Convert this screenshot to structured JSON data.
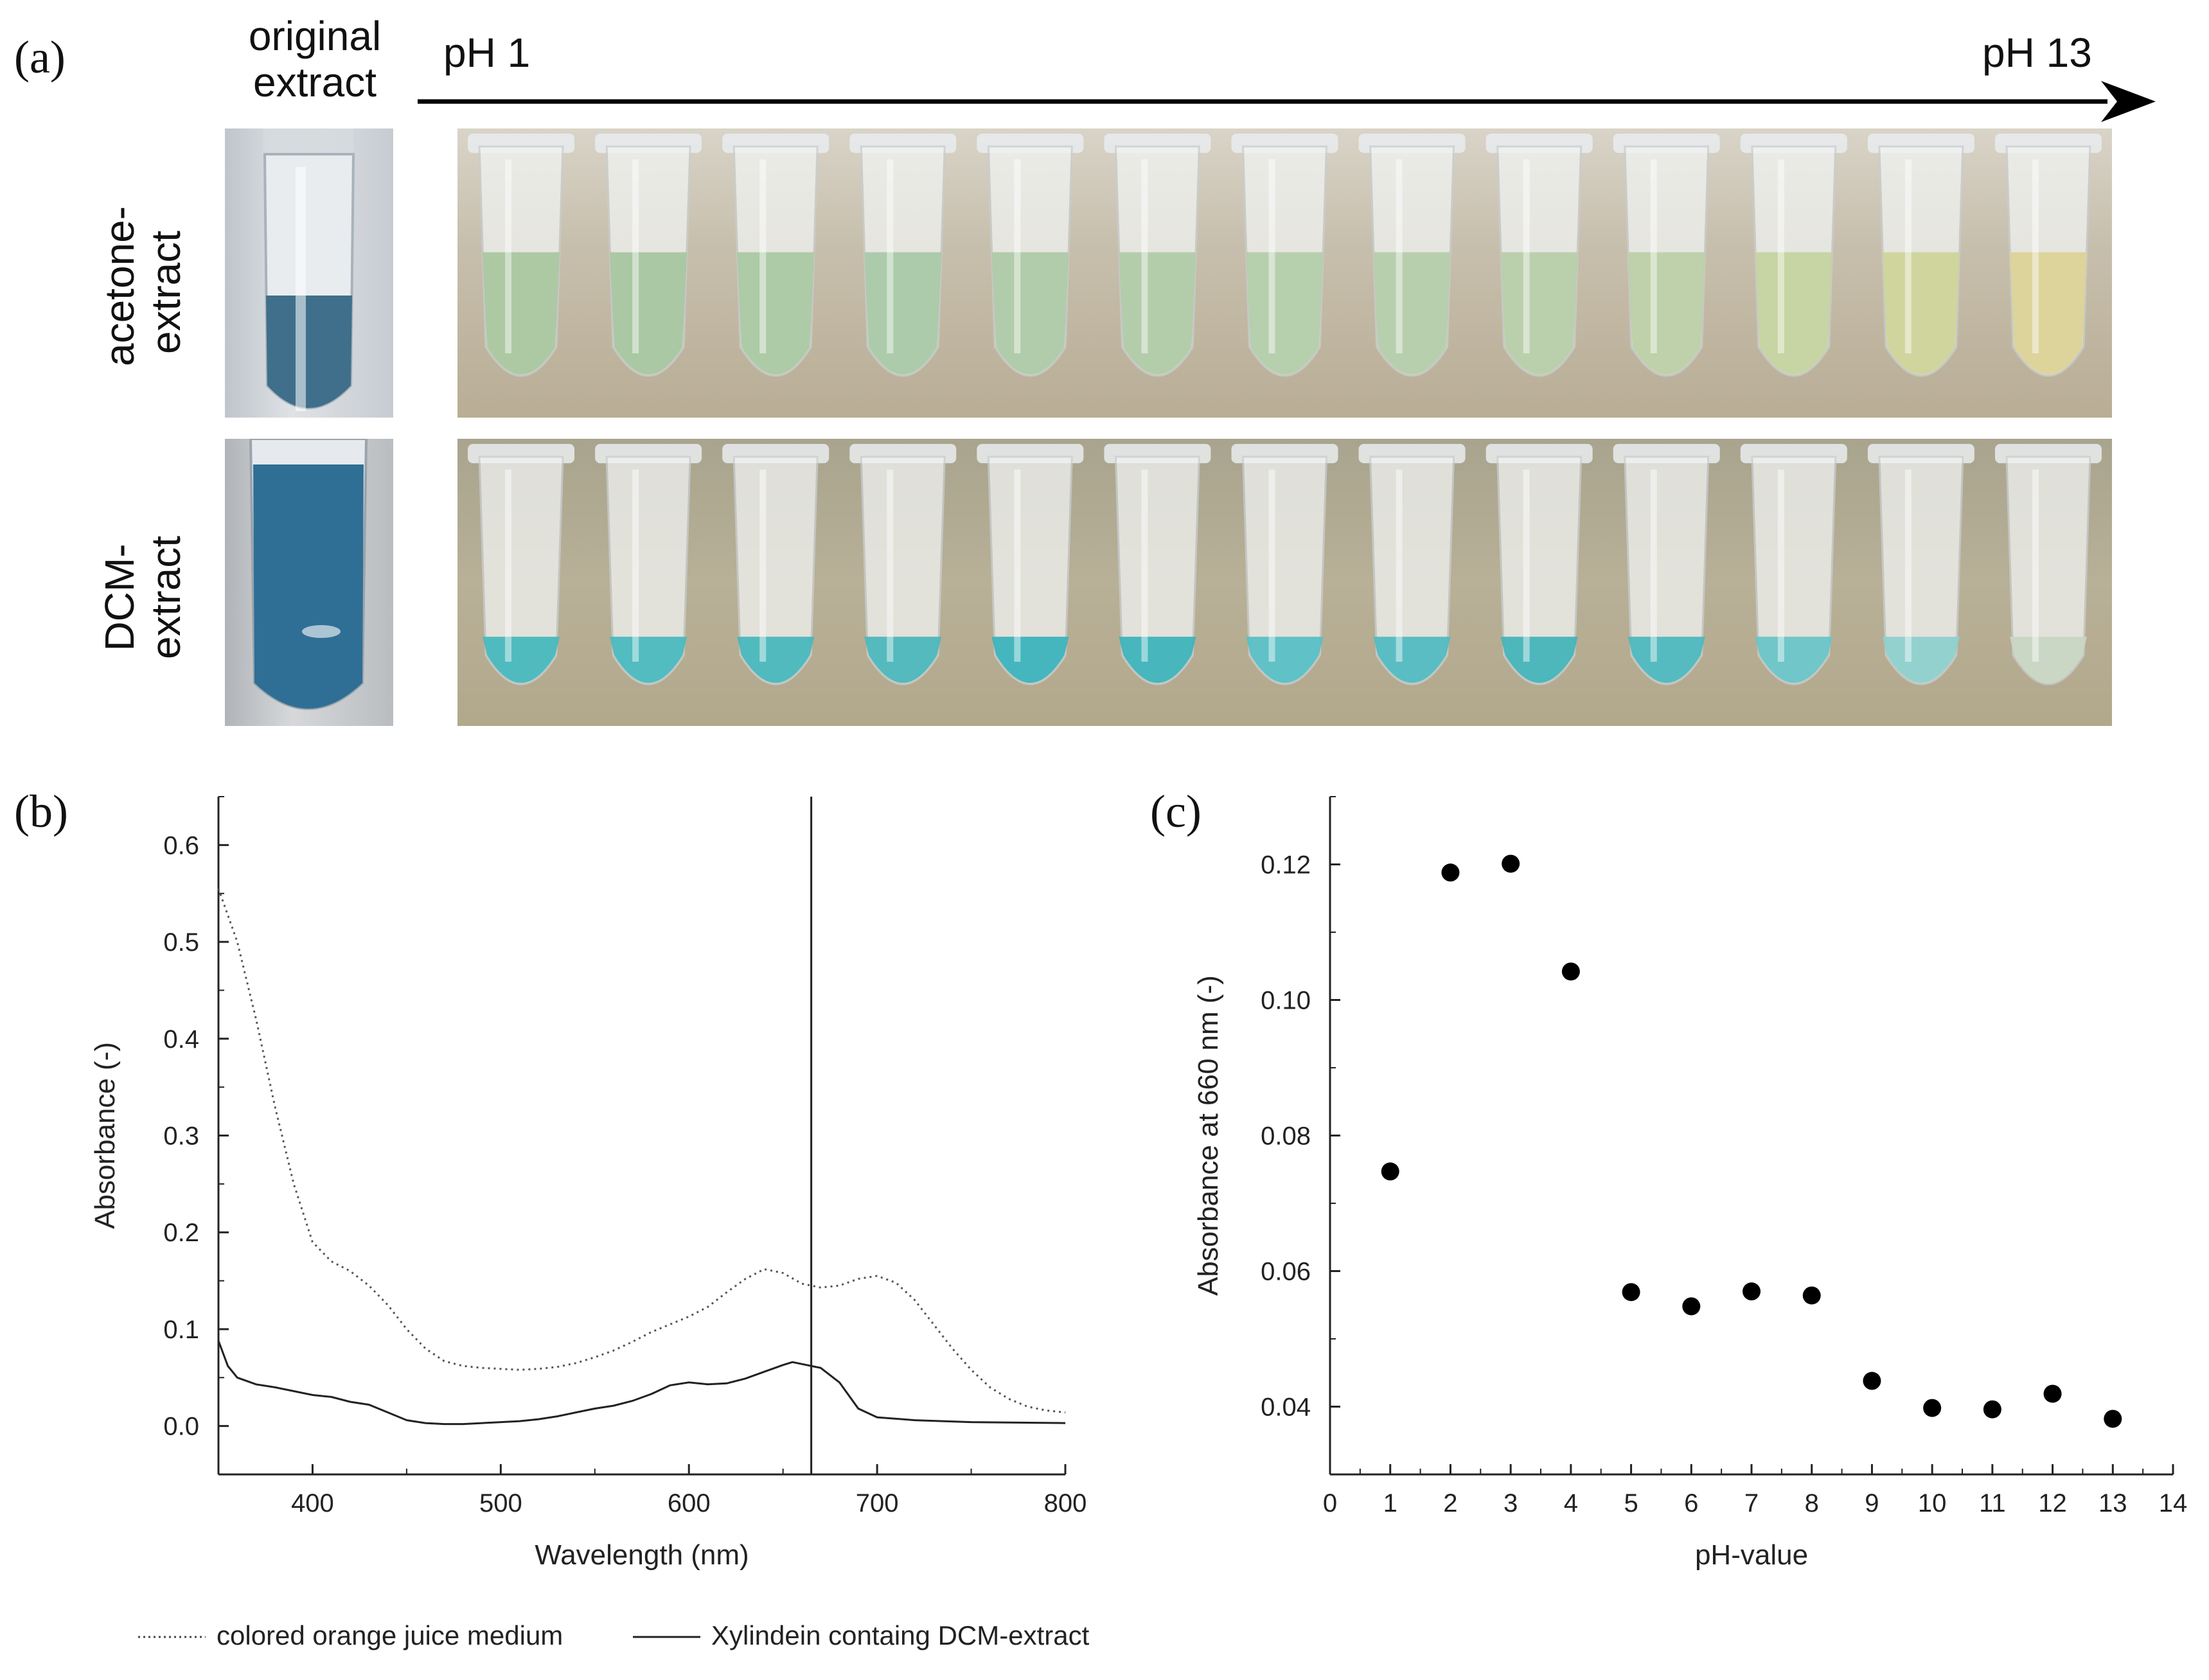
{
  "figure": {
    "panel_a": {
      "letter": "(a)",
      "original_header_line1": "original",
      "original_header_line2": "extract",
      "ph_start": "pH 1",
      "ph_end": "pH 13",
      "row1_line1": "acetone-",
      "row1_line2": "extract",
      "row2_line1": "DCM-",
      "row2_line2": "extract",
      "tube_count": 13,
      "colors": {
        "acetone_liquid": [
          "#a9c7a0",
          "#a8c6a0",
          "#aac9a2",
          "#a9c9a6",
          "#aecaa6",
          "#b0cba8",
          "#b3cdaa",
          "#b5ceaa",
          "#b7cfa9",
          "#bcd0a6",
          "#c5d3a0",
          "#cfd49a",
          "#dcd398"
        ],
        "dcm_liquid": [
          "#48b8be",
          "#4ab9bf",
          "#49b7bd",
          "#4cb7bd",
          "#3cb3bd",
          "#3eb3bc",
          "#58bfc6",
          "#52bbc2",
          "#45b4bb",
          "#4db8bf",
          "#69c4c8",
          "#8ed0cf",
          "#c9d6c4"
        ],
        "original_acetone": "#3f6f8a",
        "original_dcm": "#2f6f95"
      }
    },
    "panel_b": {
      "letter": "(b)"
    },
    "panel_c": {
      "letter": "(c)"
    },
    "legend": {
      "dotted_label": "colored orange juice medium",
      "solid_label": "Xylindein containg DCM-extract"
    }
  },
  "chart_data": [
    {
      "type": "line",
      "panel": "(b)",
      "title": "",
      "xlabel": "Wavelength (nm)",
      "ylabel": "Absorbance (-)",
      "xlim": [
        350,
        800
      ],
      "ylim": [
        -0.05,
        0.65
      ],
      "xticks": [
        400,
        500,
        600,
        700,
        800
      ],
      "yticks": [
        0.0,
        0.1,
        0.2,
        0.3,
        0.4,
        0.5,
        0.6
      ],
      "xtick_labels": [
        "400",
        "500",
        "600",
        "700",
        "800"
      ],
      "ytick_labels": [
        "0.0",
        "0.1",
        "0.2",
        "0.3",
        "0.4",
        "0.5",
        "0.6"
      ],
      "vline_x": 665,
      "series": [
        {
          "name": "colored orange juice medium",
          "style": "dotted",
          "x": [
            350,
            360,
            370,
            380,
            390,
            400,
            410,
            420,
            430,
            440,
            450,
            460,
            470,
            480,
            490,
            500,
            510,
            520,
            530,
            540,
            550,
            560,
            570,
            580,
            590,
            600,
            610,
            620,
            630,
            640,
            650,
            660,
            670,
            680,
            690,
            700,
            710,
            720,
            730,
            740,
            750,
            760,
            770,
            780,
            790,
            800
          ],
          "values": [
            0.555,
            0.5,
            0.42,
            0.33,
            0.25,
            0.19,
            0.17,
            0.16,
            0.145,
            0.125,
            0.1,
            0.08,
            0.067,
            0.062,
            0.06,
            0.059,
            0.058,
            0.059,
            0.061,
            0.065,
            0.071,
            0.078,
            0.087,
            0.097,
            0.105,
            0.113,
            0.123,
            0.138,
            0.152,
            0.162,
            0.158,
            0.147,
            0.143,
            0.145,
            0.152,
            0.155,
            0.148,
            0.13,
            0.105,
            0.08,
            0.058,
            0.04,
            0.028,
            0.02,
            0.016,
            0.014
          ]
        },
        {
          "name": "Xylindein containg DCM-extract",
          "style": "solid",
          "x": [
            350,
            355,
            360,
            370,
            380,
            390,
            400,
            410,
            420,
            430,
            440,
            450,
            460,
            470,
            480,
            490,
            500,
            510,
            520,
            530,
            540,
            550,
            560,
            570,
            580,
            590,
            600,
            610,
            620,
            630,
            640,
            650,
            655,
            660,
            670,
            680,
            690,
            700,
            720,
            750,
            800
          ],
          "values": [
            0.088,
            0.062,
            0.05,
            0.043,
            0.04,
            0.036,
            0.032,
            0.03,
            0.025,
            0.022,
            0.014,
            0.006,
            0.003,
            0.002,
            0.002,
            0.003,
            0.004,
            0.005,
            0.007,
            0.01,
            0.014,
            0.018,
            0.021,
            0.026,
            0.033,
            0.042,
            0.045,
            0.043,
            0.044,
            0.049,
            0.056,
            0.063,
            0.066,
            0.064,
            0.06,
            0.045,
            0.018,
            0.009,
            0.006,
            0.004,
            0.003
          ]
        }
      ]
    },
    {
      "type": "scatter",
      "panel": "(c)",
      "title": "",
      "xlabel": "pH-value",
      "ylabel": "Absorbance at 660 nm (-)",
      "xlim": [
        0,
        14
      ],
      "ylim": [
        0.03,
        0.13
      ],
      "xticks": [
        0,
        1,
        2,
        3,
        4,
        5,
        6,
        7,
        8,
        9,
        10,
        11,
        12,
        13,
        14
      ],
      "yticks": [
        0.04,
        0.06,
        0.08,
        0.1,
        0.12
      ],
      "xtick_labels": [
        "0",
        "1",
        "2",
        "3",
        "4",
        "5",
        "6",
        "7",
        "8",
        "9",
        "10",
        "11",
        "12",
        "13",
        "14"
      ],
      "ytick_labels": [
        "0.04",
        "0.06",
        "0.08",
        "0.10",
        "0.12"
      ],
      "x": [
        1,
        2,
        3,
        4,
        5,
        6,
        7,
        8,
        9,
        10,
        11,
        12,
        13
      ],
      "values": [
        0.0747,
        0.1188,
        0.1201,
        0.1042,
        0.0569,
        0.0548,
        0.057,
        0.0564,
        0.0438,
        0.0398,
        0.0396,
        0.0419,
        0.0382
      ]
    }
  ]
}
